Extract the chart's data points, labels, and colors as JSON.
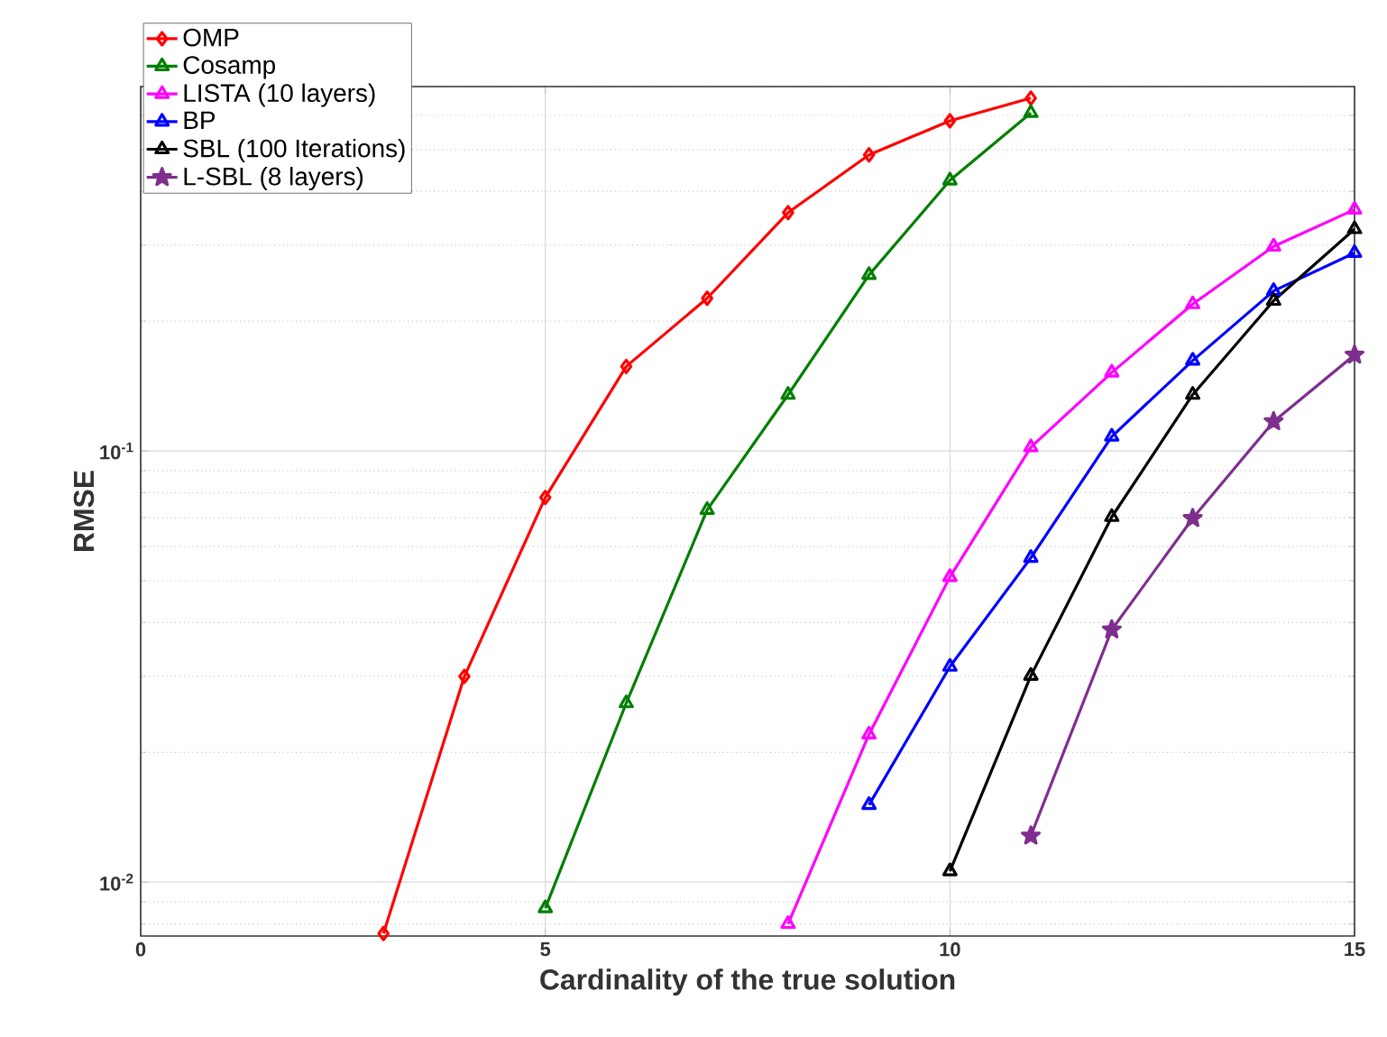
{
  "chart_data": {
    "type": "line",
    "xlabel": "Cardinality of the true solution",
    "ylabel": "RMSE",
    "xlim": [
      0,
      15
    ],
    "ylim": [
      0.0075,
      0.7
    ],
    "log": "y",
    "grid": true,
    "legend": "top left",
    "xticks": [
      0,
      5,
      10,
      15
    ],
    "yticks": [
      {
        "value": 0.01,
        "label": "10$^{-2}$"
      },
      {
        "value": 0.1,
        "label": "10$^{-1}$"
      }
    ],
    "series": [
      {
        "name": "OMP",
        "color": "#ff0000",
        "marker": "diamond",
        "x": [
          3,
          4,
          5,
          6,
          7,
          8,
          9,
          10,
          11
        ],
        "values": [
          0.0076,
          0.03,
          0.078,
          0.157,
          0.226,
          0.357,
          0.486,
          0.583,
          0.658
        ]
      },
      {
        "name": "Cosamp",
        "color": "#007f00",
        "marker": "triangle",
        "x": [
          5,
          6,
          7,
          8,
          9,
          10,
          11
        ],
        "values": [
          0.0087,
          0.026,
          0.073,
          0.135,
          0.256,
          0.424,
          0.608
        ]
      },
      {
        "name": "LISTA (10 layers)",
        "color": "#ff00ff",
        "marker": "triangle",
        "x": [
          8,
          9,
          10,
          11,
          12,
          13,
          14,
          15
        ],
        "values": [
          0.008,
          0.022,
          0.051,
          0.102,
          0.152,
          0.219,
          0.298,
          0.363
        ]
      },
      {
        "name": "BP",
        "color": "#0000ff",
        "marker": "triangle",
        "x": [
          9,
          10,
          11,
          12,
          13,
          14,
          15
        ],
        "values": [
          0.0151,
          0.0316,
          0.0565,
          0.108,
          0.162,
          0.235,
          0.288
        ]
      },
      {
        "name": "SBL (100 Iterations)",
        "color": "#000000",
        "marker": "triangle",
        "x": [
          10,
          11,
          12,
          13,
          14,
          15
        ],
        "values": [
          0.0106,
          0.0301,
          0.0703,
          0.135,
          0.223,
          0.327
        ]
      },
      {
        "name": "L-SBL (8 layers)",
        "color": "#7e2f8e",
        "marker": "star",
        "x": [
          11,
          12,
          13,
          14,
          15
        ],
        "values": [
          0.0128,
          0.0385,
          0.0698,
          0.117,
          0.167
        ]
      }
    ]
  }
}
